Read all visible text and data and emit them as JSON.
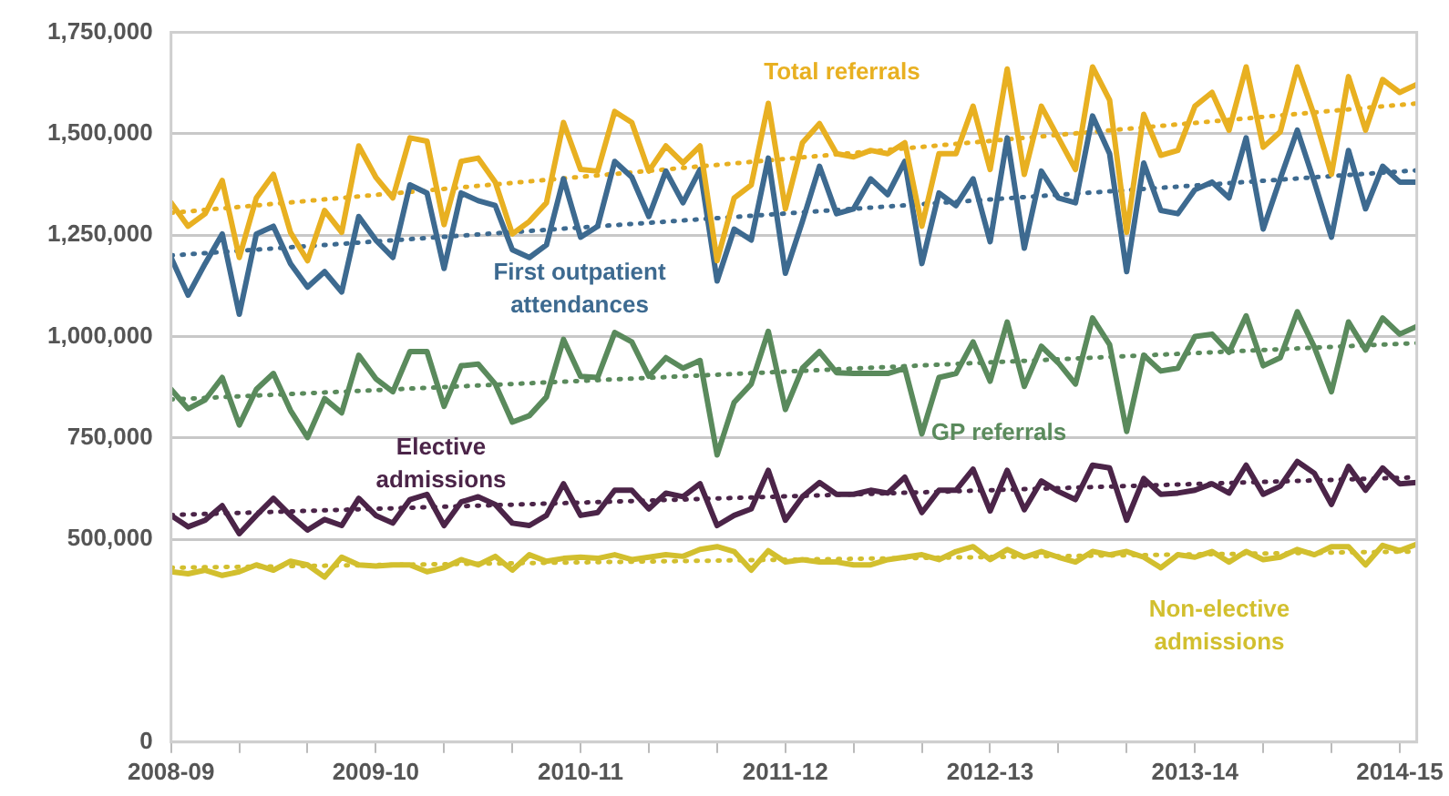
{
  "chart_data": {
    "type": "line",
    "x": [
      "2008-04",
      "2008-05",
      "2008-06",
      "2008-07",
      "2008-08",
      "2008-09",
      "2008-10",
      "2008-11",
      "2008-12",
      "2009-01",
      "2009-02",
      "2009-03",
      "2009-04",
      "2009-05",
      "2009-06",
      "2009-07",
      "2009-08",
      "2009-09",
      "2009-10",
      "2009-11",
      "2009-12",
      "2010-01",
      "2010-02",
      "2010-03",
      "2010-04",
      "2010-05",
      "2010-06",
      "2010-07",
      "2010-08",
      "2010-09",
      "2010-10",
      "2010-11",
      "2010-12",
      "2011-01",
      "2011-02",
      "2011-03",
      "2011-04",
      "2011-05",
      "2011-06",
      "2011-07",
      "2011-08",
      "2011-09",
      "2011-10",
      "2011-11",
      "2011-12",
      "2012-01",
      "2012-02",
      "2012-03",
      "2012-04",
      "2012-05",
      "2012-06",
      "2012-07",
      "2012-08",
      "2012-09",
      "2012-10",
      "2012-11",
      "2012-12",
      "2013-01",
      "2013-02",
      "2013-03",
      "2013-04",
      "2013-05",
      "2013-06",
      "2013-07",
      "2013-08",
      "2013-09",
      "2013-10",
      "2013-11",
      "2013-12",
      "2014-01",
      "2014-02",
      "2014-03",
      "2014-04",
      "2014-05"
    ],
    "xlim": [
      "2008-04",
      "2014-05"
    ],
    "xticks": [
      {
        "value": "2008-04",
        "label": "2008-09"
      },
      {
        "value": "2008-08",
        "label": null
      },
      {
        "value": "2008-12",
        "label": null
      },
      {
        "value": "2009-04",
        "label": "2009-10"
      },
      {
        "value": "2009-08",
        "label": null
      },
      {
        "value": "2009-12",
        "label": null
      },
      {
        "value": "2010-04",
        "label": "2010-11"
      },
      {
        "value": "2010-08",
        "label": null
      },
      {
        "value": "2010-12",
        "label": null
      },
      {
        "value": "2011-04",
        "label": "2011-12"
      },
      {
        "value": "2011-08",
        "label": null
      },
      {
        "value": "2011-12",
        "label": null
      },
      {
        "value": "2012-04",
        "label": "2012-13"
      },
      {
        "value": "2012-08",
        "label": null
      },
      {
        "value": "2012-12",
        "label": null
      },
      {
        "value": "2013-04",
        "label": "2013-14"
      },
      {
        "value": "2013-08",
        "label": null
      },
      {
        "value": "2013-12",
        "label": null
      },
      {
        "value": "2014-04",
        "label": "2014-15"
      }
    ],
    "ylim": [
      0,
      1750000
    ],
    "yticks": [
      0,
      {
        "value": 500000,
        "label": "500,000"
      },
      {
        "value": 750000,
        "label": "750,000"
      },
      {
        "value": 1000000,
        "label": "1,000,000"
      },
      {
        "value": 1250000,
        "label": "1,250,000"
      },
      {
        "value": 1500000,
        "label": "1,500,000"
      },
      {
        "value": 1750000,
        "label": "1,750,000"
      }
    ],
    "grid": "y",
    "series": [
      {
        "name": "Total referrals",
        "color": "#e8b021",
        "values": [
          1330000,
          1272000,
          1303000,
          1385000,
          1195000,
          1342000,
          1400000,
          1257000,
          1187000,
          1311000,
          1257000,
          1470000,
          1393000,
          1342000,
          1490000,
          1482000,
          1276000,
          1432000,
          1440000,
          1381000,
          1253000,
          1284000,
          1330000,
          1528000,
          1412000,
          1408000,
          1555000,
          1528000,
          1408000,
          1470000,
          1428000,
          1470000,
          1187000,
          1342000,
          1374000,
          1575000,
          1315000,
          1478000,
          1525000,
          1451000,
          1443000,
          1459000,
          1451000,
          1478000,
          1272000,
          1451000,
          1451000,
          1568000,
          1412000,
          1660000,
          1400000,
          1568000,
          1490000,
          1412000,
          1665000,
          1583000,
          1257000,
          1548000,
          1447000,
          1459000,
          1568000,
          1602000,
          1509000,
          1665000,
          1467000,
          1505000,
          1665000,
          1544000,
          1400000,
          1641000,
          1509000,
          1634000,
          1602000,
          1622000
        ]
      },
      {
        "name": "First outpatient attendances",
        "color": "#3d6a90",
        "values": [
          1195000,
          1102000,
          1180000,
          1253000,
          1055000,
          1253000,
          1272000,
          1180000,
          1122000,
          1160000,
          1110000,
          1296000,
          1238000,
          1195000,
          1374000,
          1354000,
          1168000,
          1354000,
          1335000,
          1323000,
          1214000,
          1195000,
          1226000,
          1389000,
          1245000,
          1272000,
          1432000,
          1393000,
          1296000,
          1408000,
          1330000,
          1412000,
          1137000,
          1265000,
          1238000,
          1440000,
          1156000,
          1284000,
          1420000,
          1303000,
          1315000,
          1389000,
          1350000,
          1432000,
          1180000,
          1354000,
          1323000,
          1389000,
          1234000,
          1490000,
          1218000,
          1408000,
          1342000,
          1330000,
          1544000,
          1451000,
          1160000,
          1428000,
          1311000,
          1303000,
          1362000,
          1381000,
          1342000,
          1490000,
          1265000,
          1389000,
          1509000,
          1381000,
          1245000,
          1459000,
          1315000,
          1420000,
          1381000,
          1381000
        ]
      },
      {
        "name": "GP referrals",
        "color": "#5a8a5c",
        "values": [
          870000,
          822000,
          844000,
          899000,
          782000,
          870000,
          909000,
          818000,
          751000,
          847000,
          812000,
          954000,
          896000,
          864000,
          963000,
          963000,
          828000,
          928000,
          932000,
          883000,
          789000,
          805000,
          851000,
          993000,
          902000,
          899000,
          1010000,
          987000,
          902000,
          948000,
          922000,
          941000,
          708000,
          838000,
          883000,
          1013000,
          820000,
          922000,
          963000,
          911000,
          909000,
          909000,
          909000,
          922000,
          760000,
          899000,
          909000,
          987000,
          890000,
          1036000,
          877000,
          976000,
          935000,
          883000,
          1046000,
          980000,
          766000,
          954000,
          915000,
          922000,
          1000000,
          1006000,
          961000,
          1051000,
          928000,
          948000,
          1061000,
          974000,
          864000,
          1036000,
          967000,
          1046000,
          1006000,
          1025000
        ]
      },
      {
        "name": "Elective admissions",
        "color": "#4b2448",
        "values": [
          559000,
          531000,
          547000,
          583000,
          514000,
          559000,
          601000,
          559000,
          523000,
          549000,
          534000,
          601000,
          559000,
          540000,
          598000,
          611000,
          534000,
          592000,
          605000,
          586000,
          540000,
          534000,
          559000,
          637000,
          559000,
          566000,
          621000,
          621000,
          575000,
          614000,
          605000,
          637000,
          534000,
          559000,
          575000,
          670000,
          547000,
          605000,
          640000,
          611000,
          611000,
          621000,
          614000,
          653000,
          566000,
          621000,
          621000,
          673000,
          570000,
          670000,
          573000,
          644000,
          618000,
          598000,
          683000,
          676000,
          547000,
          650000,
          611000,
          614000,
          621000,
          637000,
          614000,
          683000,
          611000,
          631000,
          692000,
          663000,
          586000,
          680000,
          621000,
          676000,
          637000,
          640000
        ]
      },
      {
        "name": "Non-elective admissions",
        "color": "#d2bf2e",
        "values": [
          420000,
          415000,
          424000,
          411000,
          420000,
          437000,
          424000,
          446000,
          437000,
          407000,
          456000,
          437000,
          434000,
          437000,
          437000,
          420000,
          430000,
          450000,
          437000,
          458000,
          424000,
          462000,
          446000,
          453000,
          456000,
          453000,
          462000,
          450000,
          456000,
          462000,
          458000,
          475000,
          482000,
          470000,
          424000,
          472000,
          444000,
          450000,
          444000,
          444000,
          437000,
          437000,
          450000,
          456000,
          462000,
          450000,
          470000,
          482000,
          450000,
          475000,
          456000,
          470000,
          456000,
          444000,
          470000,
          462000,
          470000,
          456000,
          430000,
          462000,
          456000,
          470000,
          444000,
          470000,
          450000,
          456000,
          475000,
          462000,
          482000,
          482000,
          437000,
          485000,
          472000,
          488000
        ]
      },
      {
        "type": "line",
        "line_style": "dotted",
        "color": "#e8b021",
        "x": [
          "2008-04",
          "2014-05"
        ],
        "values": [
          1305000,
          1575000
        ]
      },
      {
        "type": "line",
        "line_style": "dotted",
        "color": "#3d6a90",
        "x": [
          "2008-04",
          "2014-05"
        ],
        "values": [
          1200000,
          1410000
        ]
      },
      {
        "type": "line",
        "line_style": "dotted",
        "color": "#5a8a5c",
        "x": [
          "2008-04",
          "2014-05"
        ],
        "values": [
          845000,
          984000
        ]
      },
      {
        "type": "line",
        "line_style": "dotted",
        "color": "#4b2448",
        "x": [
          "2008-04",
          "2014-05"
        ],
        "values": [
          560000,
          653000
        ]
      },
      {
        "type": "line",
        "line_style": "dotted",
        "color": "#d2bf2e",
        "x": [
          "2008-04",
          "2014-05"
        ],
        "values": [
          430000,
          470000
        ]
      }
    ]
  }
}
